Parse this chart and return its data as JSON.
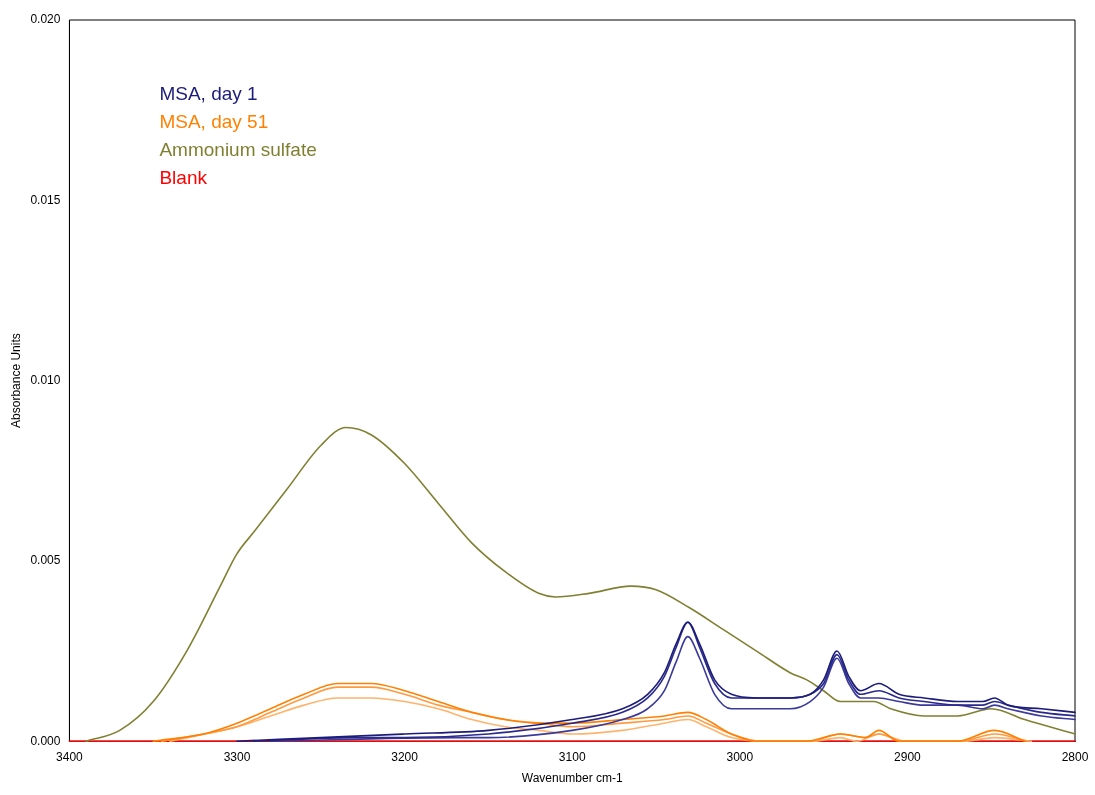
{
  "chart_data": {
    "type": "line",
    "xlabel": "Wavenumber cm-1",
    "ylabel": "Absorbance Units",
    "xlim": [
      3400,
      2800
    ],
    "xticks": [
      3400,
      3300,
      3200,
      3100,
      3000,
      2900,
      2800
    ],
    "ylim": [
      0,
      0.02
    ],
    "yticks": [
      {
        "value": 0,
        "label": "0.000"
      },
      {
        "value": 0.005,
        "label": "0.005"
      },
      {
        "value": 0.01,
        "label": "0.010"
      },
      {
        "value": 0.015,
        "label": "0.015"
      },
      {
        "value": 0.02,
        "label": "0.020"
      }
    ],
    "legend": "top left",
    "grid": false,
    "marker": "none",
    "line_style": "solid",
    "series": [
      {
        "name": "MSA, day 1",
        "color": "#1c1c7a",
        "x": [
          3300,
          3250,
          3200,
          3150,
          3100,
          3070,
          3055,
          3045,
          3038,
          3031,
          3024,
          3015,
          3005,
          2990,
          2970,
          2958,
          2950,
          2942,
          2935,
          2928,
          2917,
          2905,
          2890,
          2870,
          2855,
          2848,
          2840,
          2820,
          2800
        ],
        "values": [
          0,
          0.0001,
          0.0002,
          0.0003,
          0.0006,
          0.0009,
          0.0013,
          0.0019,
          0.0027,
          0.0033,
          0.0027,
          0.0017,
          0.0013,
          0.0012,
          0.0012,
          0.0013,
          0.0017,
          0.0025,
          0.0018,
          0.0014,
          0.0016,
          0.0013,
          0.0012,
          0.0011,
          0.0011,
          0.0012,
          0.001,
          0.0009,
          0.0008
        ]
      },
      {
        "color": "#2a2a8c",
        "x": [
          3290,
          3230,
          3200,
          3150,
          3100,
          3070,
          3055,
          3045,
          3038,
          3031,
          3024,
          3015,
          3005,
          2990,
          2970,
          2958,
          2950,
          2942,
          2935,
          2928,
          2917,
          2905,
          2890,
          2870,
          2855,
          2848,
          2840,
          2820,
          2800
        ],
        "values": [
          0,
          0.0001,
          0.0001,
          0.0002,
          0.0005,
          0.0008,
          0.0012,
          0.0018,
          0.0026,
          0.0033,
          0.0026,
          0.0016,
          0.0012,
          0.0012,
          0.0012,
          0.0013,
          0.0016,
          0.0024,
          0.0017,
          0.0013,
          0.0014,
          0.0012,
          0.0011,
          0.001,
          0.001,
          0.0011,
          0.001,
          0.0008,
          0.0007
        ]
      },
      {
        "color": "#3a3a9a",
        "x": [
          3280,
          3170,
          3150,
          3100,
          3070,
          3055,
          3045,
          3038,
          3031,
          3024,
          3015,
          3005,
          2990,
          2970,
          2958,
          2950,
          2942,
          2935,
          2928,
          2917,
          2905,
          2890,
          2870,
          2855,
          2848,
          2840,
          2820,
          2800
        ],
        "values": [
          0,
          0.0001,
          0.0001,
          0.0003,
          0.0006,
          0.0009,
          0.0014,
          0.0022,
          0.0029,
          0.0023,
          0.0013,
          0.0009,
          0.0009,
          0.0009,
          0.0011,
          0.0015,
          0.0023,
          0.0016,
          0.0012,
          0.0012,
          0.0011,
          0.001,
          0.001,
          0.0009,
          0.001,
          0.0009,
          0.0007,
          0.0006
        ]
      },
      {
        "name": "MSA, day 51",
        "color": "#ff8000",
        "x": [
          3350,
          3320,
          3300,
          3280,
          3260,
          3240,
          3220,
          3200,
          3180,
          3160,
          3140,
          3120,
          3100,
          3070,
          3045,
          3031,
          3020,
          3005,
          2990,
          2960,
          2940,
          2925,
          2917,
          2905,
          2870,
          2848,
          2830
        ],
        "values": [
          0,
          0.0002,
          0.0005,
          0.0009,
          0.0013,
          0.0016,
          0.0016,
          0.0014,
          0.0011,
          0.0008,
          0.0006,
          0.0005,
          0.0005,
          0.0006,
          0.0007,
          0.0008,
          0.0006,
          0.0002,
          0,
          0,
          0.0002,
          0.0001,
          0.0003,
          0,
          0,
          0.0003,
          0
        ]
      },
      {
        "color": "#ff9a40",
        "x": [
          3345,
          3320,
          3300,
          3280,
          3260,
          3240,
          3220,
          3200,
          3180,
          3160,
          3140,
          3120,
          3100,
          3070,
          3045,
          3031,
          3020,
          3005,
          2988,
          2958,
          2940,
          2925,
          2917,
          2903,
          2868,
          2848,
          2828
        ],
        "values": [
          0,
          0.0002,
          0.0004,
          0.0008,
          0.0012,
          0.0015,
          0.0015,
          0.0013,
          0.001,
          0.0008,
          0.0006,
          0.0005,
          0.0004,
          0.0005,
          0.0006,
          0.0007,
          0.0005,
          0.0002,
          0,
          0,
          0.0002,
          0.0001,
          0.0002,
          0,
          0,
          0.0002,
          0
        ]
      },
      {
        "color": "#ffb36b",
        "x": [
          3340,
          3300,
          3280,
          3260,
          3240,
          3220,
          3200,
          3180,
          3160,
          3140,
          3120,
          3100,
          3070,
          3045,
          3031,
          3020,
          3005,
          2985,
          2956,
          2940,
          2930,
          2917,
          2901,
          2866,
          2848,
          2826
        ],
        "values": [
          0,
          0.0004,
          0.0007,
          0.001,
          0.0012,
          0.0012,
          0.0011,
          0.0009,
          0.0006,
          0.0004,
          0.0003,
          0.0002,
          0.0003,
          0.0005,
          0.0006,
          0.0004,
          0.0001,
          0,
          0,
          0.0001,
          0,
          0.0002,
          0,
          0,
          0.0001,
          0
        ]
      },
      {
        "name": "Ammonium sulfate",
        "color": "#808033",
        "x": [
          3390,
          3370,
          3350,
          3330,
          3310,
          3300,
          3290,
          3270,
          3250,
          3235,
          3220,
          3200,
          3180,
          3160,
          3140,
          3120,
          3110,
          3090,
          3065,
          3050,
          3030,
          3010,
          2990,
          2970,
          2960,
          2950,
          2940,
          2920,
          2910,
          2890,
          2870,
          2850,
          2830,
          2800
        ],
        "values": [
          0,
          0.0003,
          0.0011,
          0.0025,
          0.0043,
          0.0052,
          0.0058,
          0.007,
          0.0082,
          0.0087,
          0.0085,
          0.0077,
          0.0066,
          0.0055,
          0.0047,
          0.0041,
          0.004,
          0.0041,
          0.0043,
          0.0042,
          0.0037,
          0.0031,
          0.0025,
          0.0019,
          0.0017,
          0.0014,
          0.0011,
          0.0011,
          0.0009,
          0.0007,
          0.0007,
          0.0009,
          0.0006,
          0.0002
        ]
      },
      {
        "name": "Blank",
        "color": "#ff0000",
        "x": [
          3400,
          2800
        ],
        "values": [
          0,
          0
        ]
      }
    ]
  }
}
